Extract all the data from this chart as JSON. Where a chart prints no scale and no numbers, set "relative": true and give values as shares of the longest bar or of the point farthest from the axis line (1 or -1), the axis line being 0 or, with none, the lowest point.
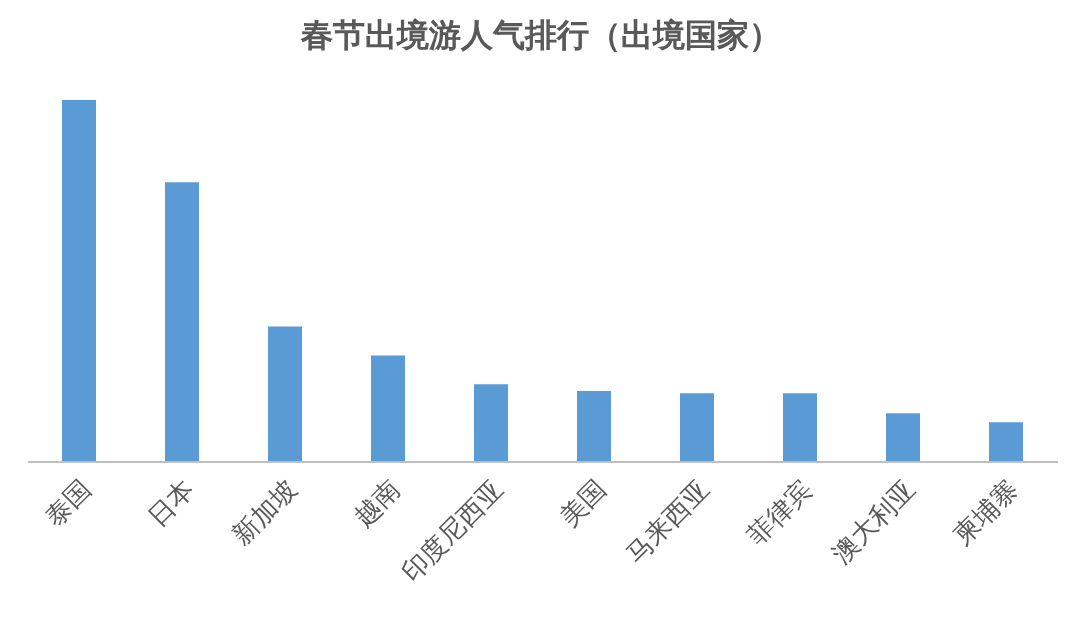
{
  "chart_data": {
    "type": "bar",
    "title": "春节出境游人气排行（出境国家）",
    "categories": [
      "泰国",
      "日本",
      "新加坡",
      "越南",
      "印度尼西亚",
      "美国",
      "马来西亚",
      "菲律宾",
      "澳大利亚",
      "柬埔寨"
    ],
    "values": [
      1,
      0.773,
      0.374,
      0.294,
      0.215,
      0.196,
      0.19,
      0.19,
      0.135,
      0.11
    ],
    "color": "#5b9bd5",
    "relative": true,
    "grid": false,
    "legend": false
  }
}
